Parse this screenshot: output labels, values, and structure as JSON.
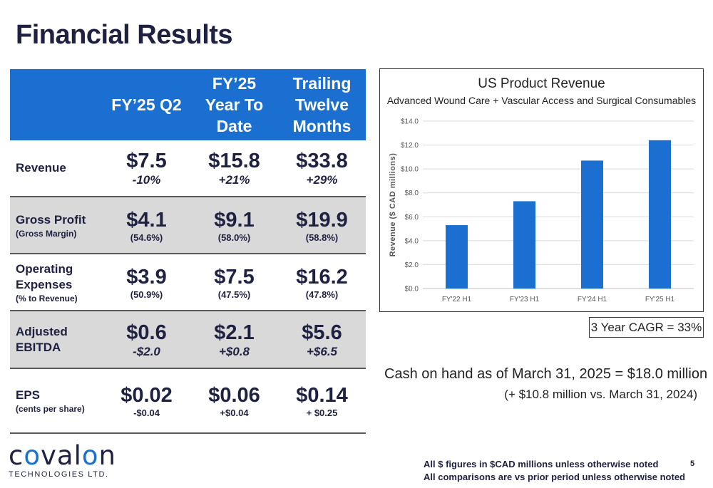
{
  "page": {
    "title": "Financial Results",
    "page_number": "5"
  },
  "table": {
    "headers": [
      "FY’25 Q2",
      "FY’25\nYear To\nDate",
      "Trailing\nTwelve\nMonths"
    ],
    "rows": [
      {
        "label": "Revenue",
        "sublabel": "",
        "values": [
          "$7.5",
          "$15.8",
          "$33.8"
        ],
        "details": [
          "-10%",
          "+21%",
          "+29%"
        ]
      },
      {
        "label": "Gross Profit",
        "sublabel": "(Gross Margin)",
        "values": [
          "$4.1",
          "$9.1",
          "$19.9"
        ],
        "details": [
          "(54.6%)",
          "(58.0%)",
          "(58.8%)"
        ]
      },
      {
        "label": "Operating\nExpenses",
        "sublabel": "(% to Revenue)",
        "values": [
          "$3.9",
          "$7.5",
          "$16.2"
        ],
        "details": [
          "(50.9%)",
          "(47.5%)",
          "(47.8%)"
        ]
      },
      {
        "label": "Adjusted\nEBITDA",
        "sublabel": "",
        "values": [
          "$0.6",
          "$2.1",
          "$5.6"
        ],
        "details": [
          "-$2.0",
          "+$0.8",
          "+$6.5"
        ]
      },
      {
        "label": "EPS",
        "sublabel": "(cents per share)",
        "values": [
          "$0.02",
          "$0.06",
          "$0.14"
        ],
        "details": [
          "-$0.04",
          "+$0.04",
          "+ $0.25"
        ]
      }
    ]
  },
  "chart_data": {
    "type": "bar",
    "title": "US Product Revenue",
    "subtitle": "Advanced Wound Care + Vascular Access and Surgical Consumables",
    "ylabel": "Revenue ($ CAD millions)",
    "xlabel": "",
    "categories": [
      "FY'22 H1",
      "FY'23 H1",
      "FY'24 H1",
      "FY'25 H1"
    ],
    "values": [
      5.3,
      7.3,
      10.7,
      12.4
    ],
    "ylim": [
      0,
      14
    ],
    "yticks": [
      "$0.0",
      "$2.0",
      "$4.0",
      "$6.0",
      "$8.0",
      "$10.0",
      "$12.0",
      "$14.0"
    ],
    "grid": true,
    "bar_color": "#1a6fd1"
  },
  "cagr": "3 Year CAGR = 33%",
  "cash": {
    "line1": "Cash on hand as of March 31, 2025 = $18.0 million",
    "line2": "(+ $10.8 million vs. March 31, 2024)"
  },
  "logo": {
    "word": "covalon",
    "tagline": "TECHNOLOGIES LTD."
  },
  "footnotes": {
    "line1": "All $ figures in $CAD millions unless otherwise noted",
    "line2": "All comparisons are vs prior period unless otherwise noted"
  },
  "colors": {
    "accent": "#1a6fd1",
    "navy": "#1e2140",
    "row_shade": "#d9d9d9"
  }
}
